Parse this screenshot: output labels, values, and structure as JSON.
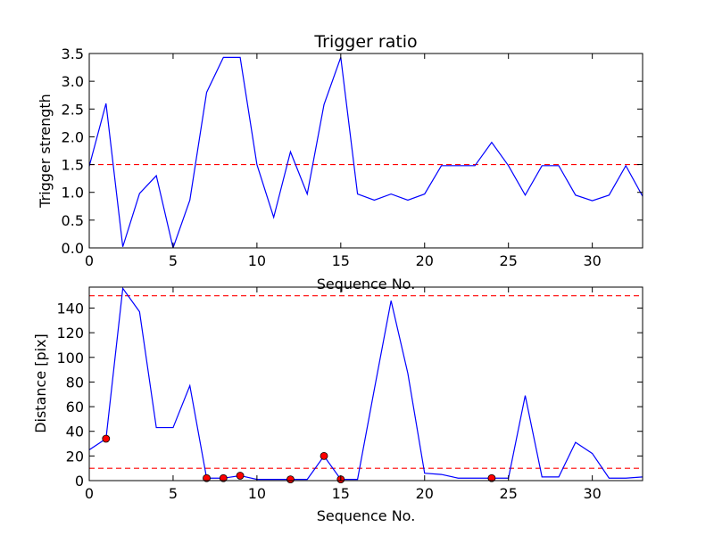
{
  "chart_data": [
    {
      "type": "line",
      "title": "Trigger ratio",
      "xlabel": "Sequence No.",
      "ylabel": "Trigger strength",
      "xlim": [
        0,
        33
      ],
      "ylim": [
        0,
        3.5
      ],
      "xticks": [
        "0",
        "5",
        "10",
        "15",
        "20",
        "25",
        "30"
      ],
      "yticks": [
        "0.0",
        "0.5",
        "1.0",
        "1.5",
        "2.0",
        "2.5",
        "3.0",
        "3.5"
      ],
      "series": [
        {
          "color": "#0000ff",
          "x": [
            0,
            1,
            2,
            3,
            4,
            5,
            6,
            7,
            8,
            9,
            10,
            11,
            12,
            13,
            14,
            15,
            16,
            17,
            18,
            19,
            20,
            21,
            22,
            23,
            24,
            25,
            26,
            27,
            28,
            29,
            30,
            31,
            32,
            33
          ],
          "values": [
            1.47,
            2.6,
            0.02,
            0.98,
            1.3,
            0.0,
            0.86,
            2.8,
            3.43,
            3.43,
            1.5,
            0.55,
            1.73,
            0.97,
            2.58,
            3.43,
            0.97,
            0.86,
            0.97,
            0.86,
            0.97,
            1.48,
            1.48,
            1.48,
            1.9,
            1.48,
            0.95,
            1.48,
            1.48,
            0.95,
            0.85,
            0.95,
            1.48,
            0.93
          ]
        }
      ],
      "hlines": [
        {
          "y": 1.5,
          "color": "#ff0000",
          "style": "dashed"
        }
      ]
    },
    {
      "type": "line",
      "title": "",
      "xlabel": "Sequence No.",
      "ylabel": "Distance [pix]",
      "xlim": [
        0,
        33
      ],
      "ylim": [
        0,
        157
      ],
      "xticks": [
        "0",
        "5",
        "10",
        "15",
        "20",
        "25",
        "30"
      ],
      "yticks": [
        "0",
        "20",
        "40",
        "60",
        "80",
        "100",
        "120",
        "140"
      ],
      "series": [
        {
          "color": "#0000ff",
          "x": [
            0,
            1,
            2,
            3,
            4,
            5,
            6,
            7,
            8,
            9,
            10,
            11,
            12,
            13,
            14,
            15,
            16,
            17,
            18,
            19,
            20,
            21,
            22,
            23,
            24,
            25,
            26,
            27,
            28,
            29,
            30,
            31,
            32,
            33
          ],
          "values": [
            25,
            34,
            156,
            137,
            43,
            43,
            77,
            2,
            2,
            4,
            1,
            1,
            1,
            1,
            20,
            1,
            1,
            74,
            146,
            87,
            6,
            5,
            2,
            2,
            2,
            2,
            69,
            3,
            3,
            31,
            22,
            2,
            2,
            3
          ]
        }
      ],
      "markers": {
        "color": "#ff0000",
        "x": [
          1,
          7,
          8,
          9,
          12,
          14,
          15,
          24
        ],
        "y": [
          34,
          2,
          2,
          4,
          1,
          20,
          1,
          2
        ]
      },
      "hlines": [
        {
          "y": 150,
          "color": "#ff0000",
          "style": "dashed"
        },
        {
          "y": 10,
          "color": "#ff0000",
          "style": "dashed"
        }
      ]
    }
  ]
}
